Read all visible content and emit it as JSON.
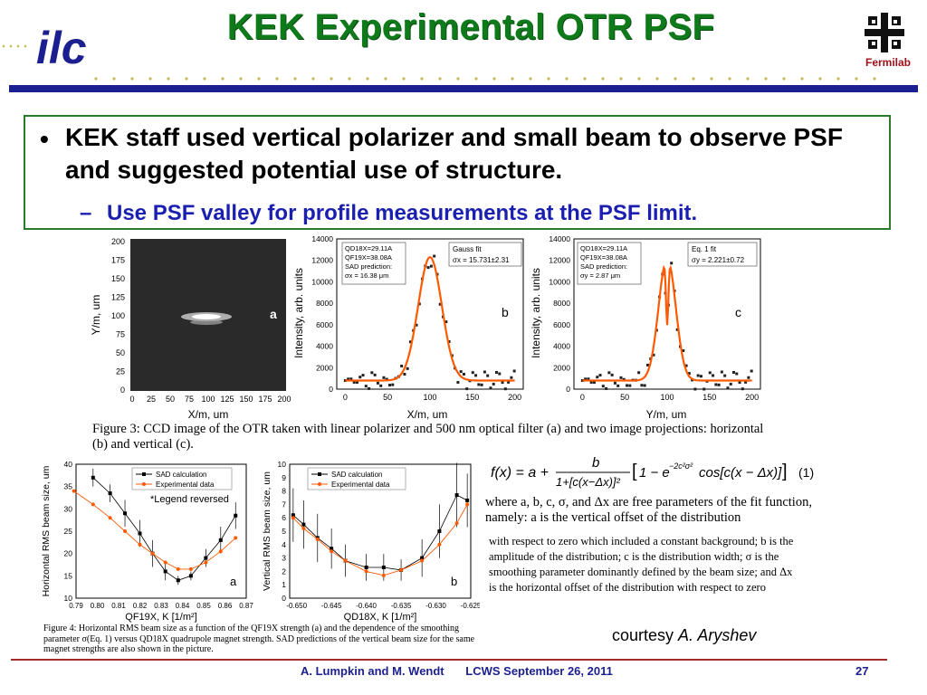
{
  "header": {
    "logo_text": "ilc",
    "title": "KEK Experimental OTR PSF",
    "partner_logo_text": "Fermilab"
  },
  "content": {
    "bullet": "KEK staff used vertical polarizer and small beam to observe PSF and suggested potential use of structure.",
    "sub_bullet": "Use PSF valley for profile measurements at the PSF limit."
  },
  "figure3": {
    "panel_a": {
      "ylabel": "Y/m, um",
      "xlabel": "X/m, um",
      "yticks": [
        "200",
        "175",
        "150",
        "125",
        "100",
        "75",
        "50",
        "25",
        "0"
      ],
      "xticks": [
        "0",
        "25",
        "50",
        "75",
        "100",
        "125",
        "150",
        "175",
        "200"
      ],
      "letter": "a"
    },
    "panel_b": {
      "ylabel": "Intensity, arb. units",
      "xlabel": "X/m, um",
      "yticks": [
        "14000",
        "12000",
        "10000",
        "8000",
        "6000",
        "4000",
        "2000",
        "0"
      ],
      "xticks": [
        "0",
        "50",
        "100",
        "150",
        "200"
      ],
      "info": [
        "QD18X=29.11A",
        "QF19X=38.08A",
        "SAD prediction:",
        "σx = 16.38 μm"
      ],
      "fit_label": [
        "Gauss fit",
        "σx = 15.731±2.31"
      ],
      "letter": "b"
    },
    "panel_c": {
      "ylabel": "Intensity, arb. units",
      "xlabel": "Y/m, um",
      "yticks": [
        "14000",
        "12000",
        "10000",
        "8000",
        "6000",
        "4000",
        "2000",
        "0"
      ],
      "xticks": [
        "0",
        "50",
        "100",
        "150",
        "200"
      ],
      "info": [
        "QD18X=29.11A",
        "QF19X=38.08A",
        "SAD prediction:",
        "σy = 2.87 μm"
      ],
      "fit_label": [
        "Eq. 1 fit",
        "σy = 2.221±0.72"
      ],
      "letter": "c"
    },
    "caption": "Figure 3: CCD image of the OTR taken with linear polarizer and 500 nm optical filter (a) and two image projections: horizontal (b) and vertical (c)."
  },
  "figure4": {
    "panel_a": {
      "ylabel": "Horizontal RMS beam size, um",
      "xlabel": "QF19X, K [1/m²]",
      "yticks": [
        "40",
        "35",
        "30",
        "25",
        "20",
        "15",
        "10"
      ],
      "xticks": [
        "0.79",
        "0.80",
        "0.81",
        "0.82",
        "0.83",
        "0.84",
        "0.85",
        "0.86",
        "0.87"
      ],
      "legend": [
        "SAD calculation",
        "Experimental data"
      ],
      "note": "*Legend reversed",
      "letter": "a"
    },
    "panel_b": {
      "ylabel": "Vertical RMS beam size, um",
      "xlabel": "QD18X, K [1/m²]",
      "yticks": [
        "10",
        "9",
        "8",
        "7",
        "6",
        "5",
        "4",
        "3",
        "2",
        "1",
        "0"
      ],
      "xticks": [
        "-0.650",
        "-0.645",
        "-0.640",
        "-0.635",
        "-0.630",
        "-0.625"
      ],
      "legend": [
        "SAD calculation",
        "Experimental data"
      ],
      "letter": "b"
    },
    "caption_lines": [
      "Figure 4: Horizontal RMS beam size as a function of the QF19X strength (a) and the dependence of the smoothing",
      "parameter σ(Eq. 1) versus QD18X quadrupole magnet strength. SAD predictions of the vertical beam size for the same",
      "magnet strengths are also shown in the picture."
    ]
  },
  "equation": {
    "label": "(1)",
    "description": "where a, b, c, σ, and Δx are free parameters of the fit function, namely: a is the vertical offset of the distribution",
    "explanation": "with respect to zero which included a constant background; b is the amplitude of the distribution; c is the distribution width; σ is the smoothing parameter dominantly defined by the beam size; and Δx is the horizontal offset of the distribution with respect to zero"
  },
  "courtesy": {
    "prefix": "courtesy ",
    "name": "A. Aryshev"
  },
  "footer": {
    "authors": "A. Lumpkin and M. Wendt",
    "event": "LCWS  September 26, 2011",
    "page": "27"
  },
  "colors": {
    "title": "#0f7a1a",
    "navy": "#1b1f8f",
    "sub_bullet": "#1b1fb0",
    "fit_line": "#ff5a00",
    "footer_line": "#a52a2a"
  }
}
